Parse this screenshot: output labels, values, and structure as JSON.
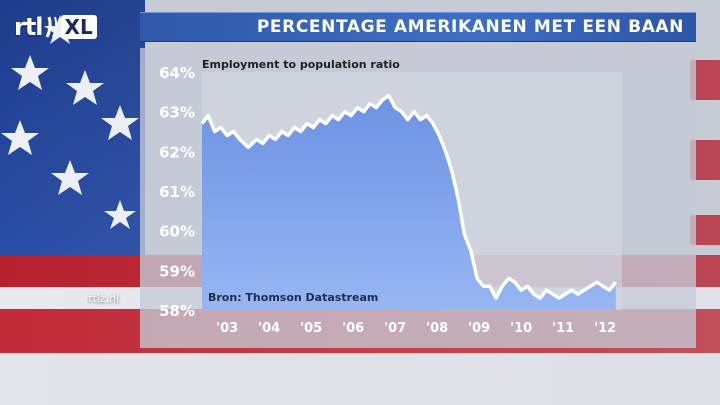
{
  "brand": {
    "logo_text": "rtl",
    "logo_suffix": "XL",
    "site": "rtlz.nl"
  },
  "header": {
    "title": "PERCENTAGE AMERIKANEN MET EEN BAAN"
  },
  "colors": {
    "banner": "#3a66b8",
    "line": "#ffffff",
    "area_top": "#6f95e6",
    "area_bottom": "#8fb0f0"
  },
  "chart_data": {
    "type": "area",
    "title": "Employment to population ratio",
    "source": "Bron: Thomson Datastream",
    "xlabel": "",
    "ylabel": "",
    "ylim": [
      58,
      64
    ],
    "xlim": [
      2002.4,
      2012.4
    ],
    "y_tick_labels": [
      "64%",
      "63%",
      "62%",
      "61%",
      "60%",
      "59%",
      "58%"
    ],
    "y_tick_values": [
      64,
      63,
      62,
      61,
      60,
      59,
      58
    ],
    "x_tick_labels": [
      "'03",
      "'04",
      "'05",
      "'06",
      "'07",
      "'08",
      "'09",
      "'10",
      "'11",
      "'12"
    ],
    "x_tick_values": [
      2003,
      2004,
      2005,
      2006,
      2007,
      2008,
      2009,
      2010,
      2011,
      2012
    ],
    "grid": false,
    "series": [
      {
        "x": [
          2002.4,
          2002.55,
          2002.7,
          2002.85,
          2003.0,
          2003.15,
          2003.3,
          2003.5,
          2003.7,
          2003.85,
          2004.0,
          2004.15,
          2004.3,
          2004.45,
          2004.6,
          2004.75,
          2004.9,
          2005.05,
          2005.2,
          2005.35,
          2005.5,
          2005.65,
          2005.8,
          2005.95,
          2006.1,
          2006.25,
          2006.4,
          2006.55,
          2006.7,
          2006.85,
          2007.0,
          2007.15,
          2007.3,
          2007.45,
          2007.6,
          2007.75,
          2007.9,
          2008.05,
          2008.2,
          2008.35,
          2008.5,
          2008.65,
          2008.8,
          2008.95,
          2009.1,
          2009.25,
          2009.4,
          2009.55,
          2009.7,
          2009.85,
          2010.0,
          2010.15,
          2010.3,
          2010.45,
          2010.6,
          2010.75,
          2010.9,
          2011.05,
          2011.2,
          2011.35,
          2011.5,
          2011.65,
          2011.8,
          2011.95,
          2012.1,
          2012.25
        ],
        "values": [
          62.7,
          62.9,
          62.5,
          62.6,
          62.4,
          62.5,
          62.3,
          62.1,
          62.3,
          62.2,
          62.4,
          62.3,
          62.5,
          62.4,
          62.6,
          62.5,
          62.7,
          62.6,
          62.8,
          62.7,
          62.9,
          62.8,
          63.0,
          62.9,
          63.1,
          63.0,
          63.2,
          63.1,
          63.3,
          63.4,
          63.1,
          63.0,
          62.8,
          63.0,
          62.8,
          62.9,
          62.7,
          62.4,
          62.0,
          61.5,
          60.8,
          59.9,
          59.5,
          58.8,
          58.6,
          58.6,
          58.3,
          58.6,
          58.8,
          58.7,
          58.5,
          58.6,
          58.4,
          58.3,
          58.5,
          58.4,
          58.3,
          58.4,
          58.5,
          58.4,
          58.5,
          58.6,
          58.7,
          58.6,
          58.5,
          58.7
        ]
      }
    ]
  }
}
